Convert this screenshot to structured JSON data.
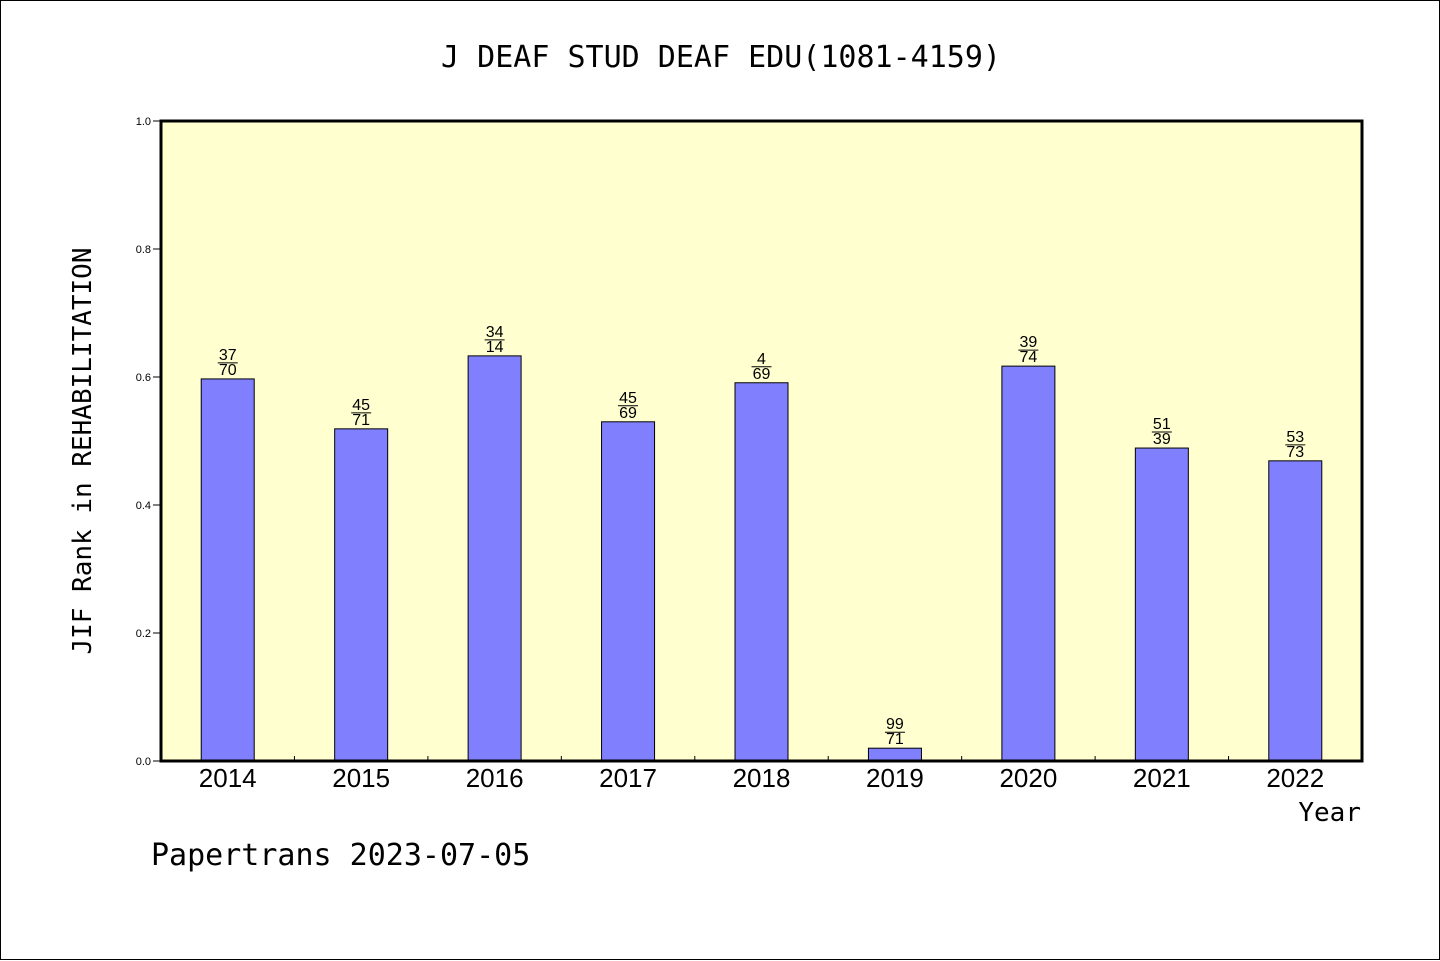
{
  "chart_data": {
    "type": "bar",
    "title": "J DEAF STUD DEAF EDU(1081-4159)",
    "xlabel": "Year",
    "ylabel": "JIF Rank in REHABILITATION",
    "categories": [
      "2014",
      "2015",
      "2016",
      "2017",
      "2018",
      "2019",
      "2020",
      "2021",
      "2022"
    ],
    "values": [
      0.597,
      0.519,
      0.633,
      0.53,
      0.591,
      0.02,
      0.617,
      0.489,
      0.469
    ],
    "rank_labels": [
      [
        "37",
        "70"
      ],
      [
        "45",
        "71"
      ],
      [
        "34",
        "14"
      ],
      [
        "45",
        "69"
      ],
      [
        "4",
        "69"
      ],
      [
        "99",
        "71"
      ],
      [
        "39",
        "74"
      ],
      [
        "51",
        "39"
      ],
      [
        "53",
        "73"
      ]
    ],
    "ylim": [
      0.0,
      1.0
    ],
    "yticks": [
      "0.0",
      "0.2",
      "0.4",
      "0.6",
      "0.8",
      "1.0"
    ],
    "colors": {
      "bar": "#8080ff",
      "plot_background": "#ffffd0",
      "axis": "#000000"
    },
    "grid": false
  },
  "footer": "Papertrans 2023-07-05"
}
